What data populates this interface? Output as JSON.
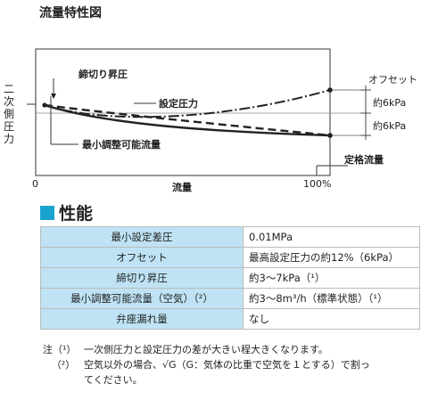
{
  "chart": {
    "title": "流量特性図",
    "y_axis_label_chars": [
      "二",
      "次",
      "側",
      "圧",
      "力"
    ],
    "x_axis_label": "流量",
    "x_tick_start": "0",
    "x_tick_end": "100%",
    "annotations": {
      "lockup": "締切り昇圧",
      "setpoint": "設定圧力",
      "min_flow": "最小調整可能流量",
      "offset": "オフセット",
      "offset_up": "約6kPa",
      "offset_down": "約6kPa",
      "rated_flow": "定格流量"
    }
  },
  "performance": {
    "heading": "性能",
    "rows": [
      {
        "label": "最小設定差圧",
        "value": "0.01MPa"
      },
      {
        "label": "オフセット",
        "value": "最高設定圧力の約12%（6kPa）"
      },
      {
        "label": "締切り昇圧",
        "value": "約3～7kPa（¹）"
      },
      {
        "label": "最小調整可能流量（空気）（²）",
        "value": "約3～8m³/h（標準状態）（¹）"
      },
      {
        "label": "弁座漏れ量",
        "value": "なし"
      }
    ]
  },
  "notes": [
    {
      "mark": "注（¹）",
      "text": "一次側圧力と設定圧力の差が大きい程大きくなります。"
    },
    {
      "mark": "（²）",
      "text": "空気以外の場合、√G（G：気体の比重で空気を１とする）で割っ"
    },
    {
      "mark": "",
      "text": "てください。"
    }
  ]
}
